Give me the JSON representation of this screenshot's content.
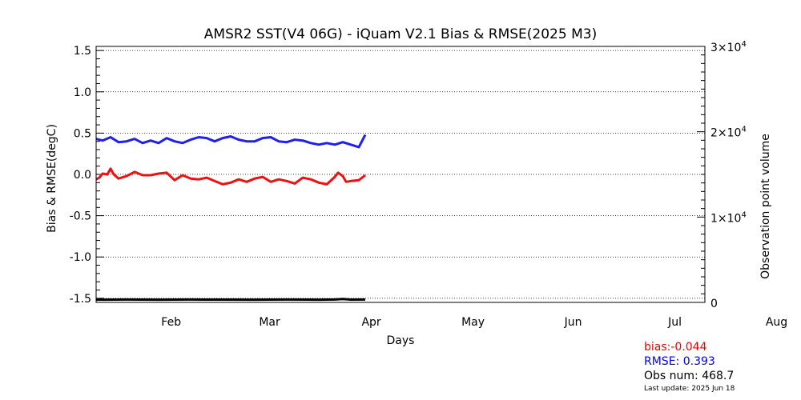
{
  "chart_data": {
    "type": "line",
    "title": "AMSR2 SST(V4 06G) - iQuam V2.1 Bias & RMSE(2025 M3)",
    "xlabel": "Days",
    "ylabel": "Bias & RMSE(degC)",
    "y2label": "Observation point volume",
    "ylim": [
      -1.55,
      1.55
    ],
    "y2lim": [
      0,
      30000
    ],
    "xlim": [
      1,
      366
    ],
    "x_tick_labels": [
      {
        "label": "Feb",
        "day": 46
      },
      {
        "label": "Mar",
        "day": 105
      },
      {
        "label": "Apr",
        "day": 166
      },
      {
        "label": "May",
        "day": 227
      },
      {
        "label": "Jun",
        "day": 287
      },
      {
        "label": "Jul",
        "day": 348
      }
    ],
    "y_tick_labels": [
      "1.5",
      "1.0",
      "0.5",
      "0.0",
      "-0.5",
      "-1.0",
      "-1.5"
    ],
    "y_tick_values": [
      1.5,
      1.0,
      0.5,
      0.0,
      -0.5,
      -1.0,
      -1.5
    ],
    "y2_tick_labels": [
      {
        "value": 30000,
        "mant": "3",
        "exp": "4"
      },
      {
        "value": 20000,
        "mant": "2",
        "exp": "4"
      },
      {
        "value": 10000,
        "mant": "1",
        "exp": "4"
      },
      {
        "value": 0,
        "mant": "0",
        "exp": ""
      }
    ],
    "grid": "dotted horizontal",
    "series": [
      {
        "color": "#2020ee",
        "x": [
          1,
          5,
          10,
          15,
          20,
          25,
          30,
          35,
          40,
          45,
          50,
          55,
          60,
          65,
          70,
          75,
          80,
          85,
          90,
          95,
          100,
          105,
          110,
          115,
          120,
          125,
          130,
          135,
          140,
          145,
          150,
          155,
          160,
          165,
          169
        ],
        "values": [
          0.43,
          0.41,
          0.45,
          0.39,
          0.4,
          0.43,
          0.38,
          0.41,
          0.38,
          0.44,
          0.4,
          0.38,
          0.42,
          0.45,
          0.44,
          0.4,
          0.44,
          0.46,
          0.42,
          0.4,
          0.4,
          0.44,
          0.45,
          0.4,
          0.39,
          0.42,
          0.41,
          0.38,
          0.36,
          0.38,
          0.36,
          0.39,
          0.36,
          0.33,
          0.48
        ]
      },
      {
        "color": "#ee1111",
        "x": [
          1,
          3,
          5,
          8,
          10,
          12,
          15,
          20,
          25,
          30,
          35,
          40,
          45,
          50,
          55,
          60,
          65,
          70,
          75,
          80,
          85,
          90,
          95,
          100,
          105,
          110,
          115,
          120,
          125,
          130,
          135,
          140,
          145,
          150,
          152,
          155,
          157,
          160,
          165,
          169
        ],
        "values": [
          -0.06,
          -0.04,
          0.01,
          0.0,
          0.07,
          0.0,
          -0.05,
          -0.02,
          0.03,
          -0.01,
          -0.01,
          0.01,
          0.02,
          -0.07,
          -0.01,
          -0.05,
          -0.06,
          -0.04,
          -0.08,
          -0.12,
          -0.1,
          -0.06,
          -0.09,
          -0.05,
          -0.03,
          -0.09,
          -0.06,
          -0.08,
          -0.11,
          -0.04,
          -0.06,
          -0.1,
          -0.12,
          -0.03,
          0.02,
          -0.02,
          -0.09,
          -0.08,
          -0.07,
          -0.01
        ]
      },
      {
        "color": "#000000",
        "axis": "y2",
        "x": [
          1,
          20,
          40,
          60,
          80,
          100,
          120,
          140,
          150,
          155,
          160,
          169
        ],
        "values": [
          21,
          18,
          22,
          19,
          20,
          21,
          18,
          22,
          19,
          5,
          20,
          18
        ]
      }
    ]
  },
  "stats": {
    "bias": "bias:-0.044",
    "bias_color": "#ee0000",
    "rmse": "RMSE: 0.393",
    "rmse_color": "#0000ee",
    "obs": "Obs num:  468.7",
    "updated": "Last update: 2025 Jun 18"
  }
}
